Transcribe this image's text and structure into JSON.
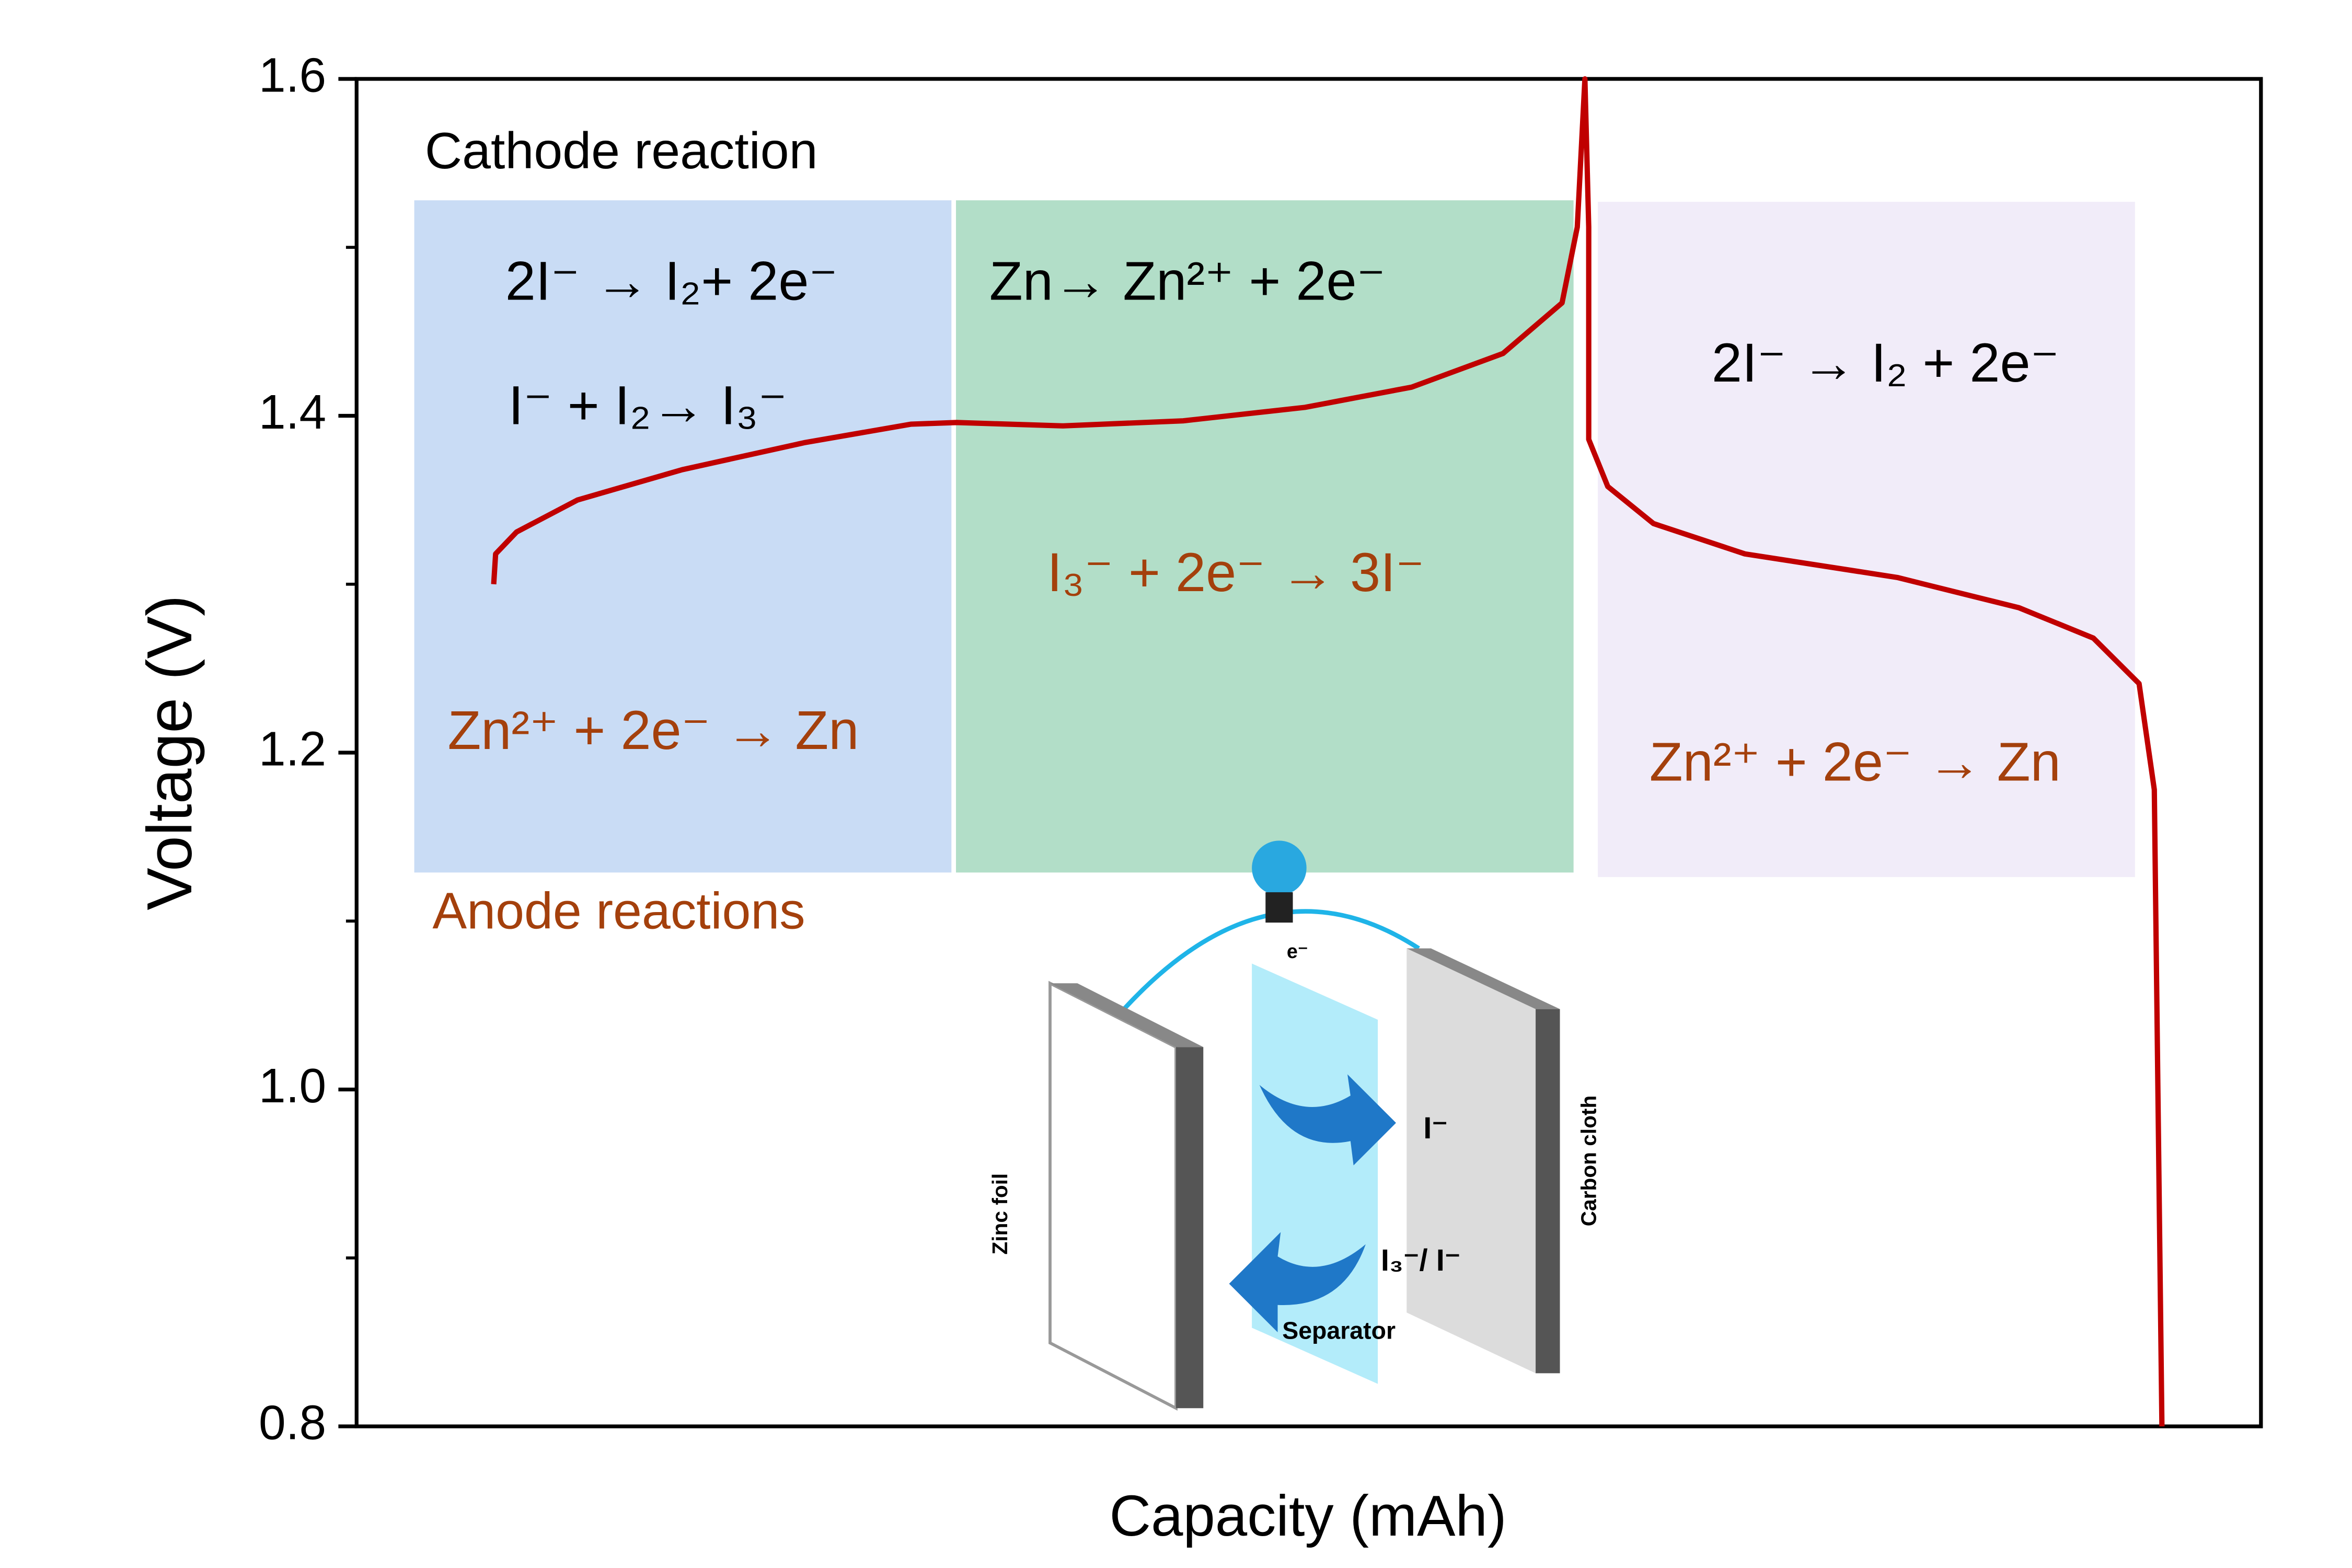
{
  "chart_data": {
    "type": "line",
    "xlabel": "Capacity (mAh)",
    "ylabel": "Voltage (V)",
    "xlim": [
      0,
      100
    ],
    "ylim": [
      0.8,
      1.6
    ],
    "yticks": [
      0.8,
      {
        "value": 1,
        "label": "1.0"
      },
      1.2,
      1.4,
      1.6
    ],
    "yminorticks": [
      0.9,
      1.1,
      1.3,
      1.5
    ],
    "color": "#c00000",
    "x": [
      7.2,
      7.3,
      8.4,
      11.6,
      17.1,
      23.5,
      29.1,
      31.5,
      37.1,
      43.4,
      49.8,
      55.4,
      60.2,
      63.3,
      64.1,
      64.5,
      64.7,
      64.7,
      65.7,
      68.1,
      72.9,
      80.9,
      87.3,
      91.2,
      93.6,
      94.4,
      94.8
    ],
    "values": [
      1.3,
      1.318,
      1.331,
      1.35,
      1.368,
      1.384,
      1.395,
      1.396,
      1.394,
      1.397,
      1.405,
      1.417,
      1.437,
      1.467,
      1.512,
      1.6,
      1.512,
      1.386,
      1.358,
      1.336,
      1.318,
      1.304,
      1.286,
      1.268,
      1.241,
      1.178,
      0.8
    ],
    "annotations": [
      {
        "text": "Cathode reaction",
        "color": "#000000"
      },
      {
        "text": "2I⁻ → I₂+ 2e⁻",
        "color": "#000000"
      },
      {
        "text": "I⁻ + I₂→ I₃⁻",
        "color": "#000000"
      },
      {
        "text": "Zn→ Zn²⁺ + 2e⁻",
        "color": "#000000"
      },
      {
        "text": "2I⁻ → I₂ + 2e⁻",
        "color": "#000000"
      },
      {
        "text": "I₃⁻ + 2e⁻ → 3I⁻",
        "color": "#a4400c"
      },
      {
        "text": "Zn²⁺ + 2e⁻ → Zn",
        "color": "#a4400c"
      },
      {
        "text": "Zn²⁺ + 2e⁻ → Zn",
        "color": "#a4400c"
      },
      {
        "text": "Anode reactions",
        "color": "#a4400c"
      }
    ],
    "inset_labels": [
      "e⁻",
      "I⁻",
      "I₃⁻/ I⁻",
      "Separator",
      "Zinc foil",
      "Carbon cloth"
    ]
  }
}
